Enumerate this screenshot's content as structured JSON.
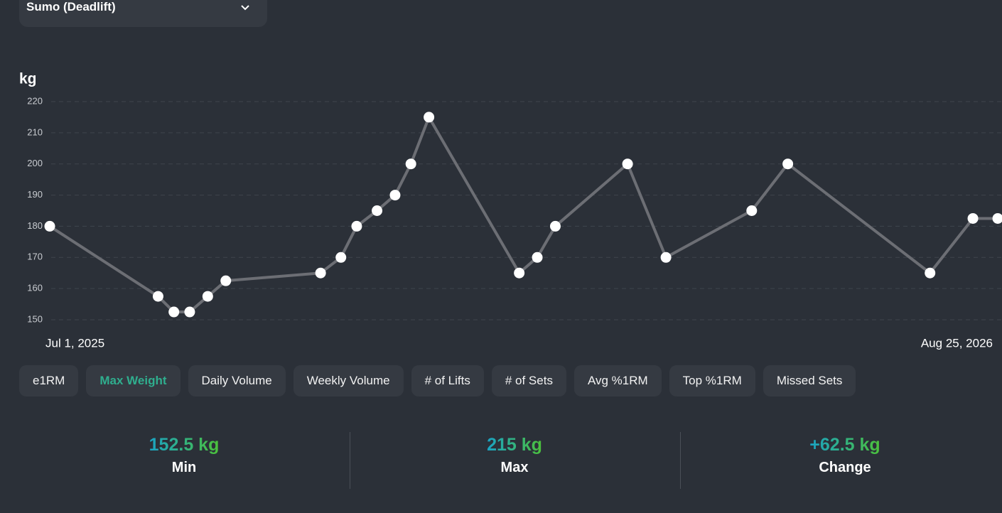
{
  "exercise": "Sumo (Deadlift)",
  "chart_data": {
    "type": "line",
    "y_label": "kg",
    "x": [
      0,
      48,
      55,
      62,
      70,
      78,
      120,
      129,
      136,
      145,
      153,
      160,
      168,
      208,
      216,
      224,
      256,
      273,
      311,
      327,
      390,
      409,
      420
    ],
    "series": [
      {
        "name": "Max Weight",
        "color": "#6c6e74",
        "values": [
          180,
          157.5,
          152.5,
          152.5,
          157.5,
          162.5,
          165,
          170,
          180,
          185,
          190,
          200,
          215,
          165,
          170,
          180,
          200,
          170,
          185,
          200,
          165,
          182.5,
          182.5
        ]
      }
    ],
    "xlim": [
      0,
      420
    ],
    "xticks": [
      {
        "value": 0,
        "label": "Jul 1, 2025"
      },
      {
        "value": 420,
        "label": "Aug 25, 2026"
      }
    ],
    "ylim": [
      150,
      220
    ],
    "yticks": [
      150,
      160,
      170,
      180,
      190,
      200,
      210,
      220
    ],
    "grid": true
  },
  "tabs": [
    "e1RM",
    "Max Weight",
    "Daily Volume",
    "Weekly Volume",
    "# of Lifts",
    "# of Sets",
    "Avg %1RM",
    "Top %1RM",
    "Missed Sets"
  ],
  "active_tab": 1,
  "stats": [
    {
      "value": "152.5 kg",
      "label": "Min"
    },
    {
      "value": "215 kg",
      "label": "Max"
    },
    {
      "value": "+62.5 kg",
      "label": "Change"
    }
  ]
}
